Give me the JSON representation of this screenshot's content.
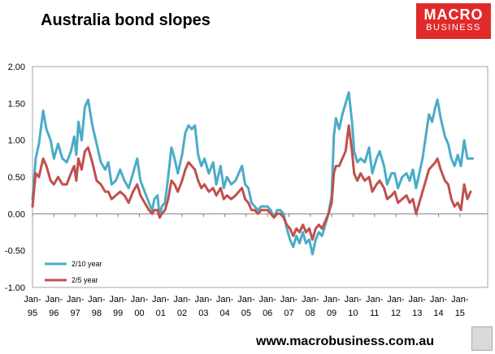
{
  "branding": {
    "logo_line1": "MACRO",
    "logo_line2": "BUSINESS",
    "website": "www.macrobusiness.com.au",
    "logo_color": "#e02b2b"
  },
  "chart_data": {
    "type": "line",
    "title": "Australia bond slopes",
    "xlabel": "",
    "ylabel": "",
    "ylim": [
      -1.0,
      2.0
    ],
    "yticks": [
      "2.00",
      "1.50",
      "1.00",
      "0.50",
      "0.00",
      "-0.50",
      "-1.00"
    ],
    "ytick_values": [
      2.0,
      1.5,
      1.0,
      0.5,
      0.0,
      -0.5,
      -1.0
    ],
    "xticks": [
      {
        "top": "Jan-",
        "bottom": "95"
      },
      {
        "top": "Jan-",
        "bottom": "96"
      },
      {
        "top": "Jan-",
        "bottom": "97"
      },
      {
        "top": "Jan-",
        "bottom": "98"
      },
      {
        "top": "Jan-",
        "bottom": "99"
      },
      {
        "top": "Jan-",
        "bottom": "00"
      },
      {
        "top": "Jan-",
        "bottom": "01"
      },
      {
        "top": "Jan-",
        "bottom": "02"
      },
      {
        "top": "Jan-",
        "bottom": "03"
      },
      {
        "top": "Jan-",
        "bottom": "04"
      },
      {
        "top": "Jan-",
        "bottom": "05"
      },
      {
        "top": "Jan-",
        "bottom": "06"
      },
      {
        "top": "Jan-",
        "bottom": "07"
      },
      {
        "top": "Jan-",
        "bottom": "08"
      },
      {
        "top": "Jan-",
        "bottom": "09"
      },
      {
        "top": "Jan-",
        "bottom": "10"
      },
      {
        "top": "Jan-",
        "bottom": "11"
      },
      {
        "top": "Jan-",
        "bottom": "12"
      },
      {
        "top": "Jan-",
        "bottom": "13"
      },
      {
        "top": "Jan-",
        "bottom": "14"
      },
      {
        "top": "Jan-",
        "bottom": "15"
      }
    ],
    "x_range": [
      1995.0,
      2016.3
    ],
    "legend_position": "bottom-left",
    "series": [
      {
        "name": "2/10 year",
        "color": "#4bacc6",
        "points": [
          [
            1995.0,
            0.2
          ],
          [
            1995.15,
            0.75
          ],
          [
            1995.3,
            0.95
          ],
          [
            1995.5,
            1.4
          ],
          [
            1995.65,
            1.15
          ],
          [
            1995.85,
            1.0
          ],
          [
            1996.0,
            0.75
          ],
          [
            1996.2,
            0.95
          ],
          [
            1996.4,
            0.75
          ],
          [
            1996.6,
            0.7
          ],
          [
            1996.8,
            0.85
          ],
          [
            1996.95,
            1.05
          ],
          [
            1997.05,
            0.8
          ],
          [
            1997.15,
            1.25
          ],
          [
            1997.3,
            1.0
          ],
          [
            1997.45,
            1.45
          ],
          [
            1997.6,
            1.55
          ],
          [
            1997.8,
            1.2
          ],
          [
            1998.0,
            0.95
          ],
          [
            1998.2,
            0.7
          ],
          [
            1998.4,
            0.6
          ],
          [
            1998.55,
            0.7
          ],
          [
            1998.7,
            0.4
          ],
          [
            1998.9,
            0.45
          ],
          [
            1999.1,
            0.6
          ],
          [
            1999.3,
            0.45
          ],
          [
            1999.5,
            0.35
          ],
          [
            1999.7,
            0.55
          ],
          [
            1999.9,
            0.75
          ],
          [
            2000.05,
            0.45
          ],
          [
            2000.25,
            0.3
          ],
          [
            2000.45,
            0.15
          ],
          [
            2000.6,
            0.05
          ],
          [
            2000.7,
            0.2
          ],
          [
            2000.85,
            0.25
          ],
          [
            2000.95,
            -0.05
          ],
          [
            2001.05,
            0.1
          ],
          [
            2001.2,
            0.15
          ],
          [
            2001.35,
            0.5
          ],
          [
            2001.5,
            0.9
          ],
          [
            2001.65,
            0.75
          ],
          [
            2001.8,
            0.55
          ],
          [
            2002.0,
            0.8
          ],
          [
            2002.15,
            1.1
          ],
          [
            2002.3,
            1.2
          ],
          [
            2002.45,
            1.15
          ],
          [
            2002.6,
            1.2
          ],
          [
            2002.75,
            0.8
          ],
          [
            2002.9,
            0.65
          ],
          [
            2003.05,
            0.75
          ],
          [
            2003.25,
            0.55
          ],
          [
            2003.45,
            0.7
          ],
          [
            2003.6,
            0.4
          ],
          [
            2003.8,
            0.65
          ],
          [
            2003.95,
            0.35
          ],
          [
            2004.1,
            0.5
          ],
          [
            2004.3,
            0.4
          ],
          [
            2004.5,
            0.45
          ],
          [
            2004.65,
            0.55
          ],
          [
            2004.8,
            0.65
          ],
          [
            2004.95,
            0.4
          ],
          [
            2005.1,
            0.35
          ],
          [
            2005.25,
            0.15
          ],
          [
            2005.4,
            0.1
          ],
          [
            2005.55,
            0.05
          ],
          [
            2005.7,
            0.1
          ],
          [
            2005.85,
            0.1
          ],
          [
            2006.0,
            0.1
          ],
          [
            2006.15,
            0.05
          ],
          [
            2006.3,
            -0.05
          ],
          [
            2006.45,
            0.05
          ],
          [
            2006.6,
            0.05
          ],
          [
            2006.75,
            0.0
          ],
          [
            2006.9,
            -0.2
          ],
          [
            2007.05,
            -0.35
          ],
          [
            2007.2,
            -0.45
          ],
          [
            2007.35,
            -0.3
          ],
          [
            2007.5,
            -0.4
          ],
          [
            2007.65,
            -0.25
          ],
          [
            2007.8,
            -0.4
          ],
          [
            2007.95,
            -0.35
          ],
          [
            2008.1,
            -0.55
          ],
          [
            2008.25,
            -0.35
          ],
          [
            2008.4,
            -0.25
          ],
          [
            2008.55,
            -0.3
          ],
          [
            2008.7,
            -0.15
          ],
          [
            2008.85,
            0.0
          ],
          [
            2009.0,
            0.25
          ],
          [
            2009.1,
            1.05
          ],
          [
            2009.2,
            1.3
          ],
          [
            2009.35,
            1.15
          ],
          [
            2009.5,
            1.35
          ],
          [
            2009.65,
            1.5
          ],
          [
            2009.8,
            1.65
          ],
          [
            2009.95,
            1.25
          ],
          [
            2010.05,
            0.85
          ],
          [
            2010.2,
            0.7
          ],
          [
            2010.35,
            0.75
          ],
          [
            2010.55,
            0.7
          ],
          [
            2010.75,
            0.9
          ],
          [
            2010.9,
            0.55
          ],
          [
            2011.1,
            0.75
          ],
          [
            2011.25,
            0.85
          ],
          [
            2011.45,
            0.65
          ],
          [
            2011.6,
            0.4
          ],
          [
            2011.8,
            0.55
          ],
          [
            2011.95,
            0.55
          ],
          [
            2012.1,
            0.35
          ],
          [
            2012.3,
            0.5
          ],
          [
            2012.5,
            0.55
          ],
          [
            2012.65,
            0.45
          ],
          [
            2012.8,
            0.6
          ],
          [
            2012.95,
            0.35
          ],
          [
            2013.1,
            0.55
          ],
          [
            2013.25,
            0.75
          ],
          [
            2013.4,
            1.05
          ],
          [
            2013.55,
            1.35
          ],
          [
            2013.7,
            1.25
          ],
          [
            2013.85,
            1.45
          ],
          [
            2013.95,
            1.55
          ],
          [
            2014.1,
            1.3
          ],
          [
            2014.3,
            1.05
          ],
          [
            2014.45,
            0.95
          ],
          [
            2014.6,
            0.75
          ],
          [
            2014.75,
            0.65
          ],
          [
            2014.9,
            0.8
          ],
          [
            2015.05,
            0.65
          ],
          [
            2015.2,
            1.0
          ],
          [
            2015.35,
            0.75
          ],
          [
            2015.6,
            0.75
          ]
        ]
      },
      {
        "name": "2/5 year",
        "color": "#c0504d",
        "points": [
          [
            1995.0,
            0.1
          ],
          [
            1995.15,
            0.55
          ],
          [
            1995.3,
            0.5
          ],
          [
            1995.5,
            0.75
          ],
          [
            1995.65,
            0.65
          ],
          [
            1995.85,
            0.45
          ],
          [
            1996.0,
            0.4
          ],
          [
            1996.2,
            0.5
          ],
          [
            1996.4,
            0.4
          ],
          [
            1996.6,
            0.4
          ],
          [
            1996.8,
            0.55
          ],
          [
            1996.95,
            0.65
          ],
          [
            1997.05,
            0.45
          ],
          [
            1997.15,
            0.75
          ],
          [
            1997.3,
            0.6
          ],
          [
            1997.45,
            0.85
          ],
          [
            1997.6,
            0.9
          ],
          [
            1997.8,
            0.7
          ],
          [
            1998.0,
            0.45
          ],
          [
            1998.2,
            0.4
          ],
          [
            1998.4,
            0.3
          ],
          [
            1998.55,
            0.3
          ],
          [
            1998.7,
            0.2
          ],
          [
            1998.9,
            0.25
          ],
          [
            1999.1,
            0.3
          ],
          [
            1999.3,
            0.25
          ],
          [
            1999.5,
            0.15
          ],
          [
            1999.7,
            0.3
          ],
          [
            1999.9,
            0.4
          ],
          [
            2000.05,
            0.25
          ],
          [
            2000.25,
            0.15
          ],
          [
            2000.45,
            0.05
          ],
          [
            2000.6,
            0.0
          ],
          [
            2000.7,
            0.05
          ],
          [
            2000.85,
            0.05
          ],
          [
            2000.95,
            -0.05
          ],
          [
            2001.05,
            0.0
          ],
          [
            2001.2,
            0.05
          ],
          [
            2001.35,
            0.2
          ],
          [
            2001.5,
            0.45
          ],
          [
            2001.65,
            0.4
          ],
          [
            2001.8,
            0.3
          ],
          [
            2002.0,
            0.45
          ],
          [
            2002.15,
            0.6
          ],
          [
            2002.3,
            0.7
          ],
          [
            2002.45,
            0.65
          ],
          [
            2002.6,
            0.6
          ],
          [
            2002.75,
            0.45
          ],
          [
            2002.9,
            0.35
          ],
          [
            2003.05,
            0.4
          ],
          [
            2003.25,
            0.3
          ],
          [
            2003.45,
            0.35
          ],
          [
            2003.6,
            0.25
          ],
          [
            2003.8,
            0.35
          ],
          [
            2003.95,
            0.2
          ],
          [
            2004.1,
            0.25
          ],
          [
            2004.3,
            0.2
          ],
          [
            2004.5,
            0.25
          ],
          [
            2004.65,
            0.3
          ],
          [
            2004.8,
            0.35
          ],
          [
            2004.95,
            0.2
          ],
          [
            2005.1,
            0.15
          ],
          [
            2005.25,
            0.05
          ],
          [
            2005.4,
            0.05
          ],
          [
            2005.55,
            0.0
          ],
          [
            2005.7,
            0.05
          ],
          [
            2005.85,
            0.05
          ],
          [
            2006.0,
            0.05
          ],
          [
            2006.15,
            0.0
          ],
          [
            2006.3,
            -0.05
          ],
          [
            2006.45,
            0.0
          ],
          [
            2006.6,
            0.0
          ],
          [
            2006.75,
            -0.05
          ],
          [
            2006.9,
            -0.15
          ],
          [
            2007.05,
            -0.2
          ],
          [
            2007.2,
            -0.3
          ],
          [
            2007.35,
            -0.2
          ],
          [
            2007.5,
            -0.25
          ],
          [
            2007.65,
            -0.15
          ],
          [
            2007.8,
            -0.25
          ],
          [
            2007.95,
            -0.2
          ],
          [
            2008.1,
            -0.35
          ],
          [
            2008.25,
            -0.2
          ],
          [
            2008.4,
            -0.15
          ],
          [
            2008.55,
            -0.2
          ],
          [
            2008.7,
            -0.1
          ],
          [
            2008.85,
            0.0
          ],
          [
            2009.0,
            0.15
          ],
          [
            2009.1,
            0.55
          ],
          [
            2009.2,
            0.65
          ],
          [
            2009.35,
            0.65
          ],
          [
            2009.5,
            0.75
          ],
          [
            2009.65,
            0.85
          ],
          [
            2009.8,
            1.2
          ],
          [
            2009.95,
            0.85
          ],
          [
            2010.05,
            0.55
          ],
          [
            2010.2,
            0.45
          ],
          [
            2010.35,
            0.55
          ],
          [
            2010.55,
            0.45
          ],
          [
            2010.75,
            0.5
          ],
          [
            2010.9,
            0.3
          ],
          [
            2011.1,
            0.4
          ],
          [
            2011.25,
            0.45
          ],
          [
            2011.45,
            0.35
          ],
          [
            2011.6,
            0.2
          ],
          [
            2011.8,
            0.25
          ],
          [
            2011.95,
            0.3
          ],
          [
            2012.1,
            0.15
          ],
          [
            2012.3,
            0.2
          ],
          [
            2012.5,
            0.25
          ],
          [
            2012.65,
            0.15
          ],
          [
            2012.8,
            0.2
          ],
          [
            2012.95,
            0.0
          ],
          [
            2013.1,
            0.15
          ],
          [
            2013.25,
            0.3
          ],
          [
            2013.4,
            0.45
          ],
          [
            2013.55,
            0.6
          ],
          [
            2013.7,
            0.65
          ],
          [
            2013.85,
            0.7
          ],
          [
            2013.95,
            0.75
          ],
          [
            2014.1,
            0.6
          ],
          [
            2014.3,
            0.45
          ],
          [
            2014.45,
            0.4
          ],
          [
            2014.6,
            0.2
          ],
          [
            2014.75,
            0.1
          ],
          [
            2014.9,
            0.15
          ],
          [
            2015.05,
            0.05
          ],
          [
            2015.2,
            0.4
          ],
          [
            2015.35,
            0.2
          ],
          [
            2015.5,
            0.3
          ]
        ]
      }
    ]
  }
}
